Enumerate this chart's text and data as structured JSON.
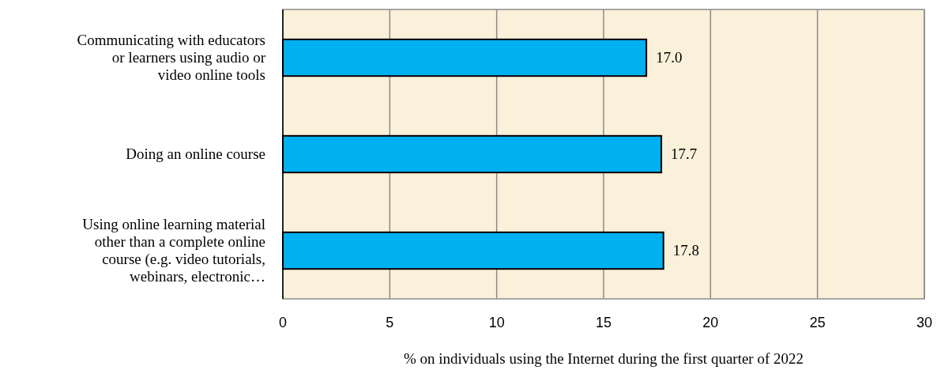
{
  "chart_data": {
    "type": "bar",
    "orientation": "horizontal",
    "categories": [
      "Communicating with educators or learners using audio or video online tools",
      "Doing an online course",
      "Using online learning material other than a complete online course (e.g. video tutorials, webinars, electronic…"
    ],
    "values": [
      17.0,
      17.7,
      17.8
    ],
    "color": "#00b0f0",
    "value_labels": [
      "17.0",
      "17.7",
      "17.8"
    ],
    "xlim": [
      0,
      30
    ],
    "xticks": [
      0,
      5,
      10,
      15,
      20,
      25,
      30
    ],
    "grid": "x",
    "xlabel": "% on individuals using the Internet during the first quarter of 2022"
  }
}
